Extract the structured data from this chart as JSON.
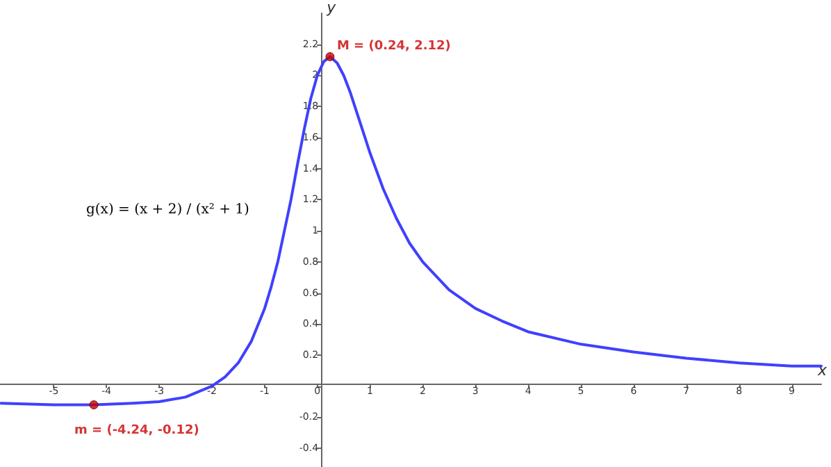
{
  "chart_data": {
    "type": "line",
    "xlabel": "x",
    "ylabel": "y",
    "xlim": [
      -6.02,
      9.56
    ],
    "ylim": [
      -0.52,
      2.4
    ],
    "xticks": [
      -5,
      -4,
      -3,
      -2,
      -1,
      0,
      1,
      2,
      3,
      4,
      5,
      6,
      7,
      8,
      9
    ],
    "yticks": [
      -0.4,
      -0.2,
      {
        "value": 0,
        "label": null
      },
      0.2,
      0.4,
      0.6,
      0.8,
      1,
      1.2,
      1.4,
      1.6,
      1.8,
      2,
      2.2
    ],
    "series": [
      {
        "color": "#4040ff",
        "marker": "none",
        "line_style": "solid",
        "x": [
          -6,
          -5,
          -4.24,
          -3.5,
          -3,
          -2.5,
          -2,
          -1.75,
          -1.5,
          -1.25,
          -1,
          -0.875,
          -0.75,
          -0.5,
          -0.375,
          -0.25,
          -0.125,
          0,
          0.125,
          0.24,
          0.375,
          0.5,
          0.625,
          0.75,
          0.875,
          1,
          1.25,
          1.5,
          1.75,
          2,
          2.5,
          3,
          3.5,
          4,
          5,
          6,
          7,
          8,
          9,
          9.56
        ],
        "values": [
          -0.11,
          -0.12,
          -0.12,
          -0.11,
          -0.1,
          -0.07,
          0,
          0.06,
          0.15,
          0.29,
          0.5,
          0.64,
          0.8,
          1.2,
          1.43,
          1.65,
          1.85,
          2,
          2.09,
          2.12,
          2.08,
          2,
          1.89,
          1.76,
          1.63,
          1.5,
          1.27,
          1.08,
          0.92,
          0.8,
          0.62,
          0.5,
          0.42,
          0.35,
          0.27,
          0.22,
          0.18,
          0.15,
          0.13,
          0.13
        ]
      },
      {
        "type": "scatter",
        "color": "#cc0000",
        "marker": "circle",
        "x": [
          0.24,
          -4.24
        ],
        "values": [
          2.12,
          -0.12
        ]
      }
    ],
    "annotations": [
      {
        "text": "M = (0.24, 2.12)",
        "x": 0.24,
        "y": 2.12
      },
      {
        "text": "m = (-4.24, -0.12)",
        "x": -4.24,
        "y": -0.12
      },
      "g(x) = (x + 2) / (x² + 1)"
    ]
  }
}
